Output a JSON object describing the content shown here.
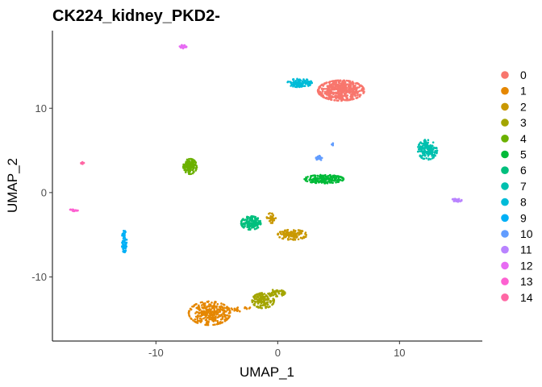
{
  "chart_data": {
    "type": "scatter",
    "title": "CK224_kidney_PKD2-",
    "xlabel": "UMAP_1",
    "ylabel": "UMAP_2",
    "xlim": [
      -18.5,
      16.8
    ],
    "ylim": [
      -17.6,
      19.2
    ],
    "x_ticks": [
      -10,
      0,
      10
    ],
    "x_tick_labels": [
      "-10",
      "0",
      "10"
    ],
    "y_ticks": [
      -10,
      0,
      10
    ],
    "y_tick_labels": [
      "-10",
      "0",
      "10"
    ],
    "grid": false,
    "legend_position": "right",
    "clusters": [
      {
        "name": "0",
        "color": "#F8766D",
        "centers": [
          [
            5.2,
            12.1,
            1.9,
            1.2,
            520
          ]
        ]
      },
      {
        "name": "1",
        "color": "#E58700",
        "centers": [
          [
            -5.6,
            -14.3,
            1.7,
            1.4,
            320
          ],
          [
            -3.5,
            -13.9,
            0.6,
            0.3,
            15
          ],
          [
            -2.5,
            -13.7,
            0.3,
            0.2,
            6
          ]
        ]
      },
      {
        "name": "2",
        "color": "#C99800",
        "centers": [
          [
            1.2,
            -5.0,
            1.2,
            0.6,
            120
          ],
          [
            -0.5,
            -3.0,
            0.4,
            0.6,
            30
          ]
        ]
      },
      {
        "name": "3",
        "color": "#A3A500",
        "centers": [
          [
            -1.2,
            -12.8,
            0.9,
            0.9,
            150
          ],
          [
            -0.1,
            -11.9,
            0.7,
            0.4,
            50
          ]
        ]
      },
      {
        "name": "4",
        "color": "#6BB100",
        "centers": [
          [
            -7.2,
            3.1,
            0.55,
            0.9,
            150
          ]
        ]
      },
      {
        "name": "5",
        "color": "#00BA38",
        "centers": [
          [
            3.8,
            1.6,
            1.6,
            0.5,
            180
          ]
        ]
      },
      {
        "name": "6",
        "color": "#00BF7D",
        "centers": [
          [
            -2.2,
            -3.6,
            0.8,
            0.8,
            150
          ]
        ]
      },
      {
        "name": "7",
        "color": "#00C0AF",
        "centers": [
          [
            12.3,
            5.1,
            0.8,
            1.2,
            170
          ]
        ]
      },
      {
        "name": "8",
        "color": "#00BCD8",
        "centers": [
          [
            1.8,
            13.0,
            1.0,
            0.5,
            110
          ]
        ]
      },
      {
        "name": "9",
        "color": "#00B0F6",
        "centers": [
          [
            -12.6,
            -5.8,
            0.2,
            1.3,
            60
          ]
        ]
      },
      {
        "name": "10",
        "color": "#619CFF",
        "centers": [
          [
            3.4,
            4.1,
            0.25,
            0.3,
            20
          ],
          [
            4.5,
            5.7,
            0.15,
            0.15,
            5
          ]
        ]
      },
      {
        "name": "11",
        "color": "#B983FF",
        "centers": [
          [
            14.7,
            -0.9,
            0.4,
            0.2,
            30
          ]
        ]
      },
      {
        "name": "12",
        "color": "#E76BF3",
        "centers": [
          [
            -7.8,
            17.3,
            0.3,
            0.2,
            20
          ]
        ]
      },
      {
        "name": "13",
        "color": "#FD61D1",
        "centers": [
          [
            -16.8,
            -2.1,
            0.4,
            0.1,
            20
          ]
        ]
      },
      {
        "name": "14",
        "color": "#FF67A4",
        "centers": [
          [
            -16.0,
            3.5,
            0.15,
            0.12,
            8
          ]
        ]
      }
    ]
  }
}
